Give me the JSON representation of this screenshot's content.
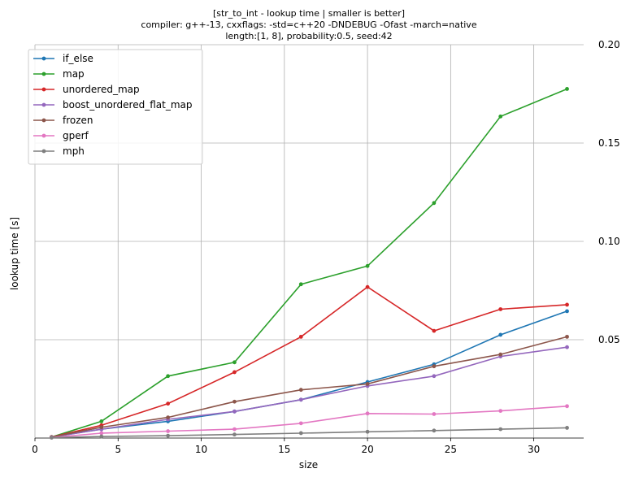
{
  "chart_data": {
    "type": "line",
    "title_lines": [
      "[str_to_int - lookup time | smaller is better]",
      "compiler: g++-13, cxxflags: -std=c++20 -DNDEBUG -Ofast -march=native",
      "length:[1, 8], probability:0.5, seed:42"
    ],
    "xlabel": "size",
    "ylabel": "lookup time [s]",
    "xlim": [
      0,
      33
    ],
    "ylim": [
      0,
      0.2
    ],
    "xticks": [
      0,
      5,
      10,
      15,
      20,
      25,
      30
    ],
    "yticks": [
      0.05,
      0.1,
      0.15,
      0.2
    ],
    "ytick_labels": [
      "0.05",
      "0.10",
      "0.15",
      "0.20"
    ],
    "yaxis_side": "right",
    "grid": true,
    "legend_position": "top-left",
    "x": [
      1,
      4,
      8,
      12,
      16,
      20,
      24,
      28,
      32
    ],
    "series": [
      {
        "name": "if_else",
        "color": "#1f77b4",
        "values": [
          0.0005,
          0.0045,
          0.0085,
          0.0135,
          0.0195,
          0.0285,
          0.0375,
          0.0525,
          0.0645
        ]
      },
      {
        "name": "map",
        "color": "#2ca02c",
        "values": [
          0.0005,
          0.0085,
          0.0315,
          0.0385,
          0.0782,
          0.0875,
          0.1195,
          0.1635,
          0.1775
        ]
      },
      {
        "name": "unordered_map",
        "color": "#d62728",
        "values": [
          0.0005,
          0.0065,
          0.0175,
          0.0335,
          0.0515,
          0.0768,
          0.0545,
          0.0655,
          0.0678
        ]
      },
      {
        "name": "boost_unordered_flat_map",
        "color": "#9467bd",
        "values": [
          0.0005,
          0.0045,
          0.0095,
          0.0135,
          0.0195,
          0.0265,
          0.0315,
          0.0415,
          0.0462
        ]
      },
      {
        "name": "frozen",
        "color": "#8c564b",
        "values": [
          0.0005,
          0.0055,
          0.0105,
          0.0185,
          0.0245,
          0.0275,
          0.0365,
          0.0425,
          0.0515
        ]
      },
      {
        "name": "gperf",
        "color": "#e377c2",
        "values": [
          0.0003,
          0.0025,
          0.0035,
          0.0045,
          0.0075,
          0.0125,
          0.0122,
          0.0138,
          0.0162
        ]
      },
      {
        "name": "mph",
        "color": "#7f7f7f",
        "values": [
          0.0002,
          0.0008,
          0.0012,
          0.0018,
          0.0025,
          0.0032,
          0.0038,
          0.0045,
          0.0052
        ]
      }
    ]
  }
}
